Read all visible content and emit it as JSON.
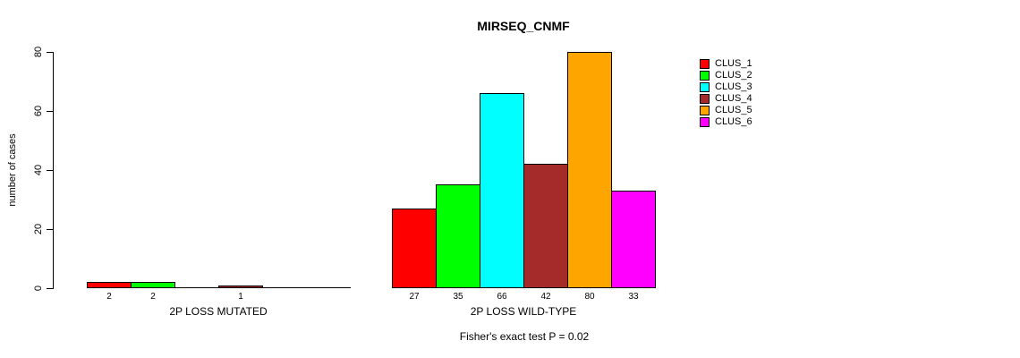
{
  "chart_data": {
    "type": "bar",
    "title": "MIRSEQ_CNMF",
    "ylabel": "number of cases",
    "ylim": [
      0,
      80
    ],
    "yticks": [
      0,
      20,
      40,
      60,
      80
    ],
    "grid": false,
    "legend_position": "right",
    "clusters": [
      {
        "name": "CLUS_1",
        "color": "#FF0000"
      },
      {
        "name": "CLUS_2",
        "color": "#00FF00"
      },
      {
        "name": "CLUS_3",
        "color": "#00FFFF"
      },
      {
        "name": "CLUS_4",
        "color": "#A52A2A"
      },
      {
        "name": "CLUS_5",
        "color": "#FFA500"
      },
      {
        "name": "CLUS_6",
        "color": "#FF00FF"
      }
    ],
    "groups": [
      {
        "label": "2P LOSS MUTATED",
        "values": [
          2,
          2,
          0,
          1,
          0,
          0
        ],
        "bar_labels": [
          "2",
          "2",
          "",
          "1",
          "",
          ""
        ]
      },
      {
        "label": "2P LOSS WILD-TYPE",
        "values": [
          27,
          35,
          66,
          42,
          80,
          33
        ],
        "bar_labels": [
          "27",
          "35",
          "66",
          "42",
          "80",
          "33"
        ]
      }
    ],
    "footer": "Fisher's exact test P = 0.02"
  }
}
